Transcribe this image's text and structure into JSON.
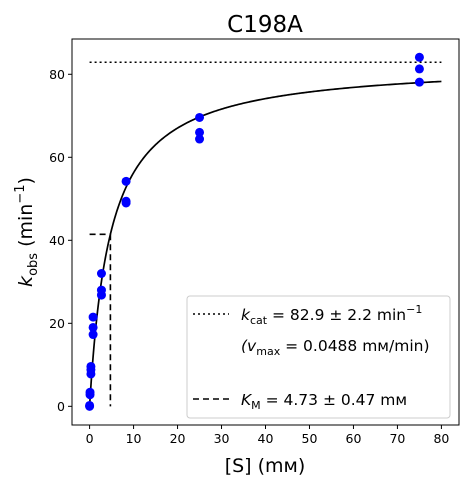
{
  "chart_data": {
    "type": "scatter",
    "title": "C198A",
    "xlabel": "[S] (mм)",
    "ylabel_main": "k",
    "ylabel_sub": "obs",
    "ylabel_units_pre": " (min",
    "ylabel_units_sup": "−1",
    "ylabel_units_post": ")",
    "xlim": [
      -4,
      84
    ],
    "ylim": [
      -4.5,
      88.5
    ],
    "xticks": [
      0,
      10,
      20,
      30,
      40,
      50,
      60,
      70,
      80
    ],
    "yticks": [
      0,
      20,
      40,
      60,
      80
    ],
    "grid": false,
    "legend_position": "lower-right",
    "colors": {
      "points": "#0000ff",
      "line": "#000000"
    },
    "points": [
      {
        "x": 0.0,
        "y": 0.0
      },
      {
        "x": 0.0,
        "y": 0.2
      },
      {
        "x": 0.1,
        "y": 2.8
      },
      {
        "x": 0.1,
        "y": 3.4
      },
      {
        "x": 0.3,
        "y": 7.8
      },
      {
        "x": 0.3,
        "y": 8.8
      },
      {
        "x": 0.3,
        "y": 9.6
      },
      {
        "x": 0.8,
        "y": 17.3
      },
      {
        "x": 0.8,
        "y": 19.0
      },
      {
        "x": 0.8,
        "y": 21.5
      },
      {
        "x": 2.7,
        "y": 26.8
      },
      {
        "x": 2.7,
        "y": 28.0
      },
      {
        "x": 2.7,
        "y": 32.0
      },
      {
        "x": 8.3,
        "y": 49.0
      },
      {
        "x": 8.3,
        "y": 49.4
      },
      {
        "x": 8.3,
        "y": 54.2
      },
      {
        "x": 25.0,
        "y": 64.4
      },
      {
        "x": 25.0,
        "y": 66.0
      },
      {
        "x": 25.0,
        "y": 69.6
      },
      {
        "x": 75.0,
        "y": 78.1
      },
      {
        "x": 75.0,
        "y": 81.3
      },
      {
        "x": 75.0,
        "y": 84.1
      }
    ],
    "fit": {
      "kcat": 82.9,
      "km": 4.73,
      "x_end": 80
    },
    "kcat_line": {
      "y": 82.9,
      "x_start": 0,
      "x_end": 80
    },
    "km_line": {
      "x": 4.73,
      "y": 41.45,
      "x_start": 0
    },
    "legend": {
      "kcat_label": "k",
      "kcat_sub": "cat",
      "kcat_value": " = 82.9 ± 2.2 min",
      "kcat_sup": "−1",
      "vmax_open": "(v",
      "vmax_sub": "max",
      "vmax_value": " = 0.0488 mм/min)",
      "km_label": "K",
      "km_sub": "M",
      "km_value": " = 4.73 ± 0.47 mм"
    }
  }
}
